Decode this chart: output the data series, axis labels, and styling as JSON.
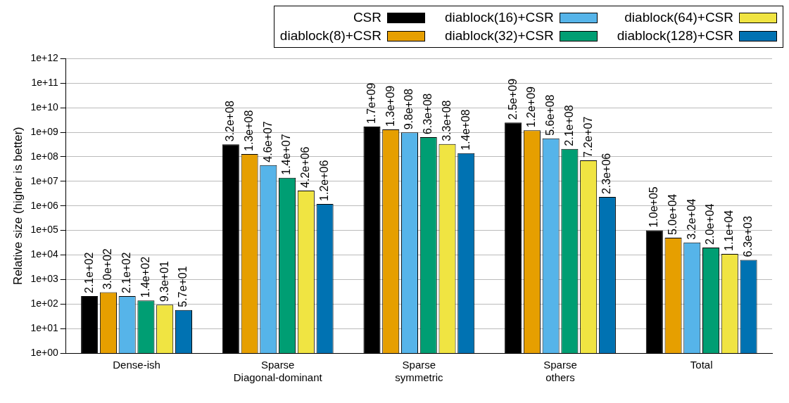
{
  "chart_data": {
    "type": "bar",
    "ylabel": "Relative size (higher is better)",
    "categories": [
      "Dense-ish",
      "Sparse\nDiagonal-dominant",
      "Sparse\nsymmetric",
      "Sparse\nothers",
      "Total"
    ],
    "series": [
      {
        "name": "CSR",
        "color": "#000000",
        "values": [
          210,
          320000000,
          1700000000,
          2500000000,
          100000
        ],
        "value_labels": [
          "2.1e+02",
          "3.2e+08",
          "1.7e+09",
          "2.5e+09",
          "1.0e+05"
        ]
      },
      {
        "name": "diablock(8)+CSR",
        "color": "#e69f00",
        "values": [
          300,
          130000000,
          1300000000,
          1200000000,
          50000
        ],
        "value_labels": [
          "3.0e+02",
          "1.3e+08",
          "1.3e+09",
          "1.2e+09",
          "5.0e+04"
        ]
      },
      {
        "name": "diablock(16)+CSR",
        "color": "#56b4e9",
        "values": [
          210,
          46000000,
          980000000,
          560000000,
          32000
        ],
        "value_labels": [
          "2.1e+02",
          "4.6e+07",
          "9.8e+08",
          "5.6e+08",
          "3.2e+04"
        ]
      },
      {
        "name": "diablock(32)+CSR",
        "color": "#009e73",
        "values": [
          140,
          14000000,
          630000000,
          210000000,
          20000
        ],
        "value_labels": [
          "1.4e+02",
          "1.4e+07",
          "6.3e+08",
          "2.1e+08",
          "2.0e+04"
        ]
      },
      {
        "name": "diablock(64)+CSR",
        "color": "#f0e442",
        "values": [
          93,
          4200000,
          330000000,
          72000000,
          11000
        ],
        "value_labels": [
          "9.3e+01",
          "4.2e+06",
          "3.3e+08",
          "7.2e+07",
          "1.1e+04"
        ]
      },
      {
        "name": "diablock(128)+CSR",
        "color": "#0072b2",
        "values": [
          57,
          1200000,
          140000000,
          2300000,
          6300
        ],
        "value_labels": [
          "5.7e+01",
          "1.2e+06",
          "1.4e+08",
          "2.3e+06",
          "6.3e+03"
        ]
      }
    ],
    "log": "y",
    "ylim": [
      1,
      1000000000000
    ],
    "yticks": [
      {
        "value": 1,
        "label": "1e+00"
      },
      {
        "value": 10,
        "label": "1e+01"
      },
      {
        "value": 100,
        "label": "1e+02"
      },
      {
        "value": 1000,
        "label": "1e+03"
      },
      {
        "value": 10000,
        "label": "1e+04"
      },
      {
        "value": 100000,
        "label": "1e+05"
      },
      {
        "value": 1000000,
        "label": "1e+06"
      },
      {
        "value": 10000000,
        "label": "1e+07"
      },
      {
        "value": 100000000,
        "label": "1e+08"
      },
      {
        "value": 1000000000,
        "label": "1e+09"
      },
      {
        "value": 10000000000,
        "label": "1e+10"
      },
      {
        "value": 100000000000,
        "label": "1e+11"
      },
      {
        "value": 1000000000000,
        "label": "1e+12"
      }
    ],
    "grid": "y",
    "legend": "top right"
  }
}
